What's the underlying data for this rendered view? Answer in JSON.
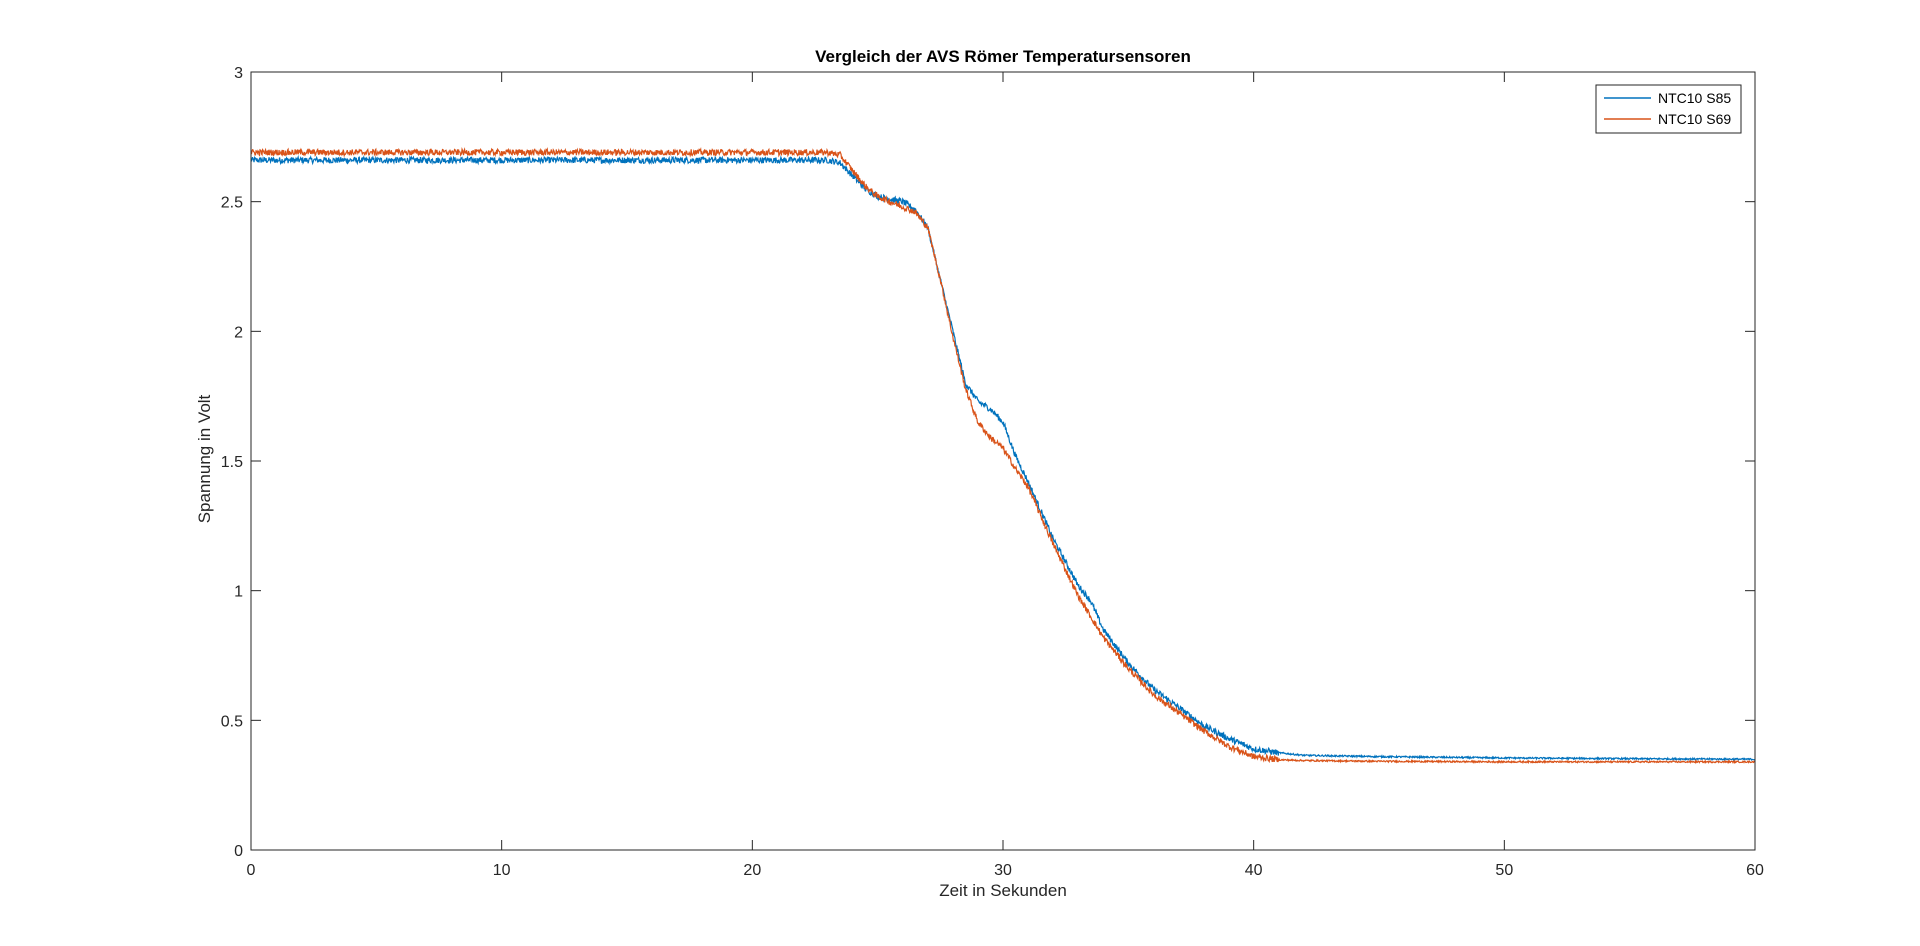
{
  "chart_data": {
    "type": "line",
    "title": "Vergleich der AVS Römer Temperatursensoren",
    "xlabel": "Zeit in Sekunden",
    "ylabel": "Spannung in Volt",
    "xlim": [
      0,
      60
    ],
    "ylim": [
      0,
      3
    ],
    "xticks": [
      0,
      10,
      20,
      30,
      40,
      50,
      60
    ],
    "xtick_labels": [
      "0",
      "10",
      "20",
      "30",
      "40",
      "50",
      "60"
    ],
    "yticks": [
      0,
      0.5,
      1,
      1.5,
      2,
      2.5,
      3
    ],
    "ytick_labels": [
      "0",
      "0.5",
      "1",
      "1.5",
      "2",
      "2.5",
      "3"
    ],
    "grid": false,
    "legend_position": "top-right",
    "series": [
      {
        "name": "NTC10 S85",
        "color": "#0072BD",
        "noise": 0.012,
        "x": [
          0,
          5,
          10,
          15,
          20,
          23,
          23.5,
          24,
          24.5,
          25,
          26,
          26.5,
          27,
          27.5,
          28,
          28.5,
          29,
          29.5,
          30,
          30.5,
          31,
          32,
          33,
          33.5,
          34,
          35,
          36,
          37,
          38,
          39,
          40,
          41,
          42,
          45,
          50,
          55,
          60
        ],
        "y": [
          2.66,
          2.66,
          2.66,
          2.66,
          2.66,
          2.66,
          2.65,
          2.6,
          2.55,
          2.52,
          2.5,
          2.47,
          2.4,
          2.2,
          2.0,
          1.8,
          1.73,
          1.7,
          1.65,
          1.52,
          1.42,
          1.2,
          1.02,
          0.96,
          0.85,
          0.72,
          0.62,
          0.55,
          0.48,
          0.43,
          0.39,
          0.375,
          0.365,
          0.36,
          0.355,
          0.352,
          0.35
        ]
      },
      {
        "name": "NTC10 S69",
        "color": "#D95319",
        "noise": 0.012,
        "x": [
          0,
          5,
          10,
          15,
          20,
          23,
          23.5,
          24,
          24.5,
          25,
          26,
          26.5,
          27,
          27.5,
          28,
          28.5,
          29,
          29.5,
          30,
          30.5,
          31,
          32,
          33,
          33.5,
          34,
          35,
          36,
          37,
          38,
          39,
          40,
          41,
          42,
          45,
          50,
          55,
          60
        ],
        "y": [
          2.69,
          2.69,
          2.69,
          2.69,
          2.69,
          2.69,
          2.68,
          2.62,
          2.56,
          2.52,
          2.48,
          2.46,
          2.4,
          2.2,
          1.98,
          1.78,
          1.65,
          1.59,
          1.55,
          1.47,
          1.4,
          1.18,
          0.98,
          0.9,
          0.82,
          0.7,
          0.6,
          0.53,
          0.46,
          0.4,
          0.36,
          0.348,
          0.345,
          0.342,
          0.34,
          0.34,
          0.34
        ]
      }
    ]
  }
}
